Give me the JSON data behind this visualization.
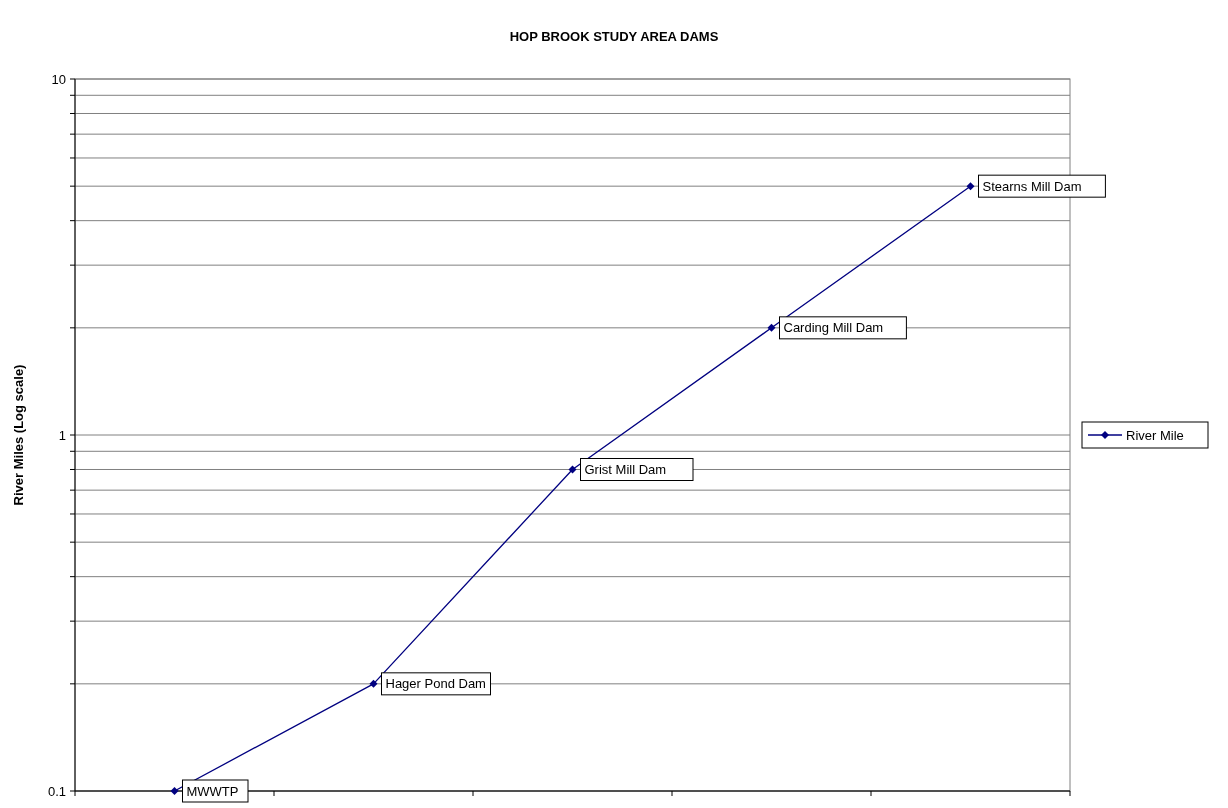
{
  "chart_data": {
    "type": "line",
    "title": "HOP BROOK STUDY AREA DAMS",
    "ylabel": "River Miles (Log scale)",
    "categories": [
      null,
      null,
      null,
      null,
      null
    ],
    "series": [
      {
        "name": "River Mile",
        "color": "#000080",
        "values": [
          0.1,
          0.2,
          0.8,
          2,
          5
        ],
        "value_labels": [
          "MWWTP",
          "Hager Pond Dam",
          "Grist Mill Dam",
          "Carding Mill Dam",
          "Stearns Mill Dam"
        ]
      }
    ],
    "log": "y",
    "ylim": [
      0.1,
      10
    ],
    "yticks": [
      0.1,
      {
        "value": 0.2,
        "label": null
      },
      {
        "value": 0.3,
        "label": null
      },
      {
        "value": 0.4,
        "label": null
      },
      {
        "value": 0.5,
        "label": null
      },
      {
        "value": 0.6,
        "label": null
      },
      {
        "value": 0.7,
        "label": null
      },
      {
        "value": 0.8,
        "label": null
      },
      {
        "value": 0.9,
        "label": null
      },
      1,
      {
        "value": 2,
        "label": null
      },
      {
        "value": 3,
        "label": null
      },
      {
        "value": 4,
        "label": null
      },
      {
        "value": 5,
        "label": null
      },
      {
        "value": 6,
        "label": null
      },
      {
        "value": 7,
        "label": null
      },
      {
        "value": 8,
        "label": null
      },
      {
        "value": 9,
        "label": null
      },
      10
    ],
    "grid": "y",
    "legend": "right",
    "marker": "diamond",
    "line_style": "solid"
  }
}
